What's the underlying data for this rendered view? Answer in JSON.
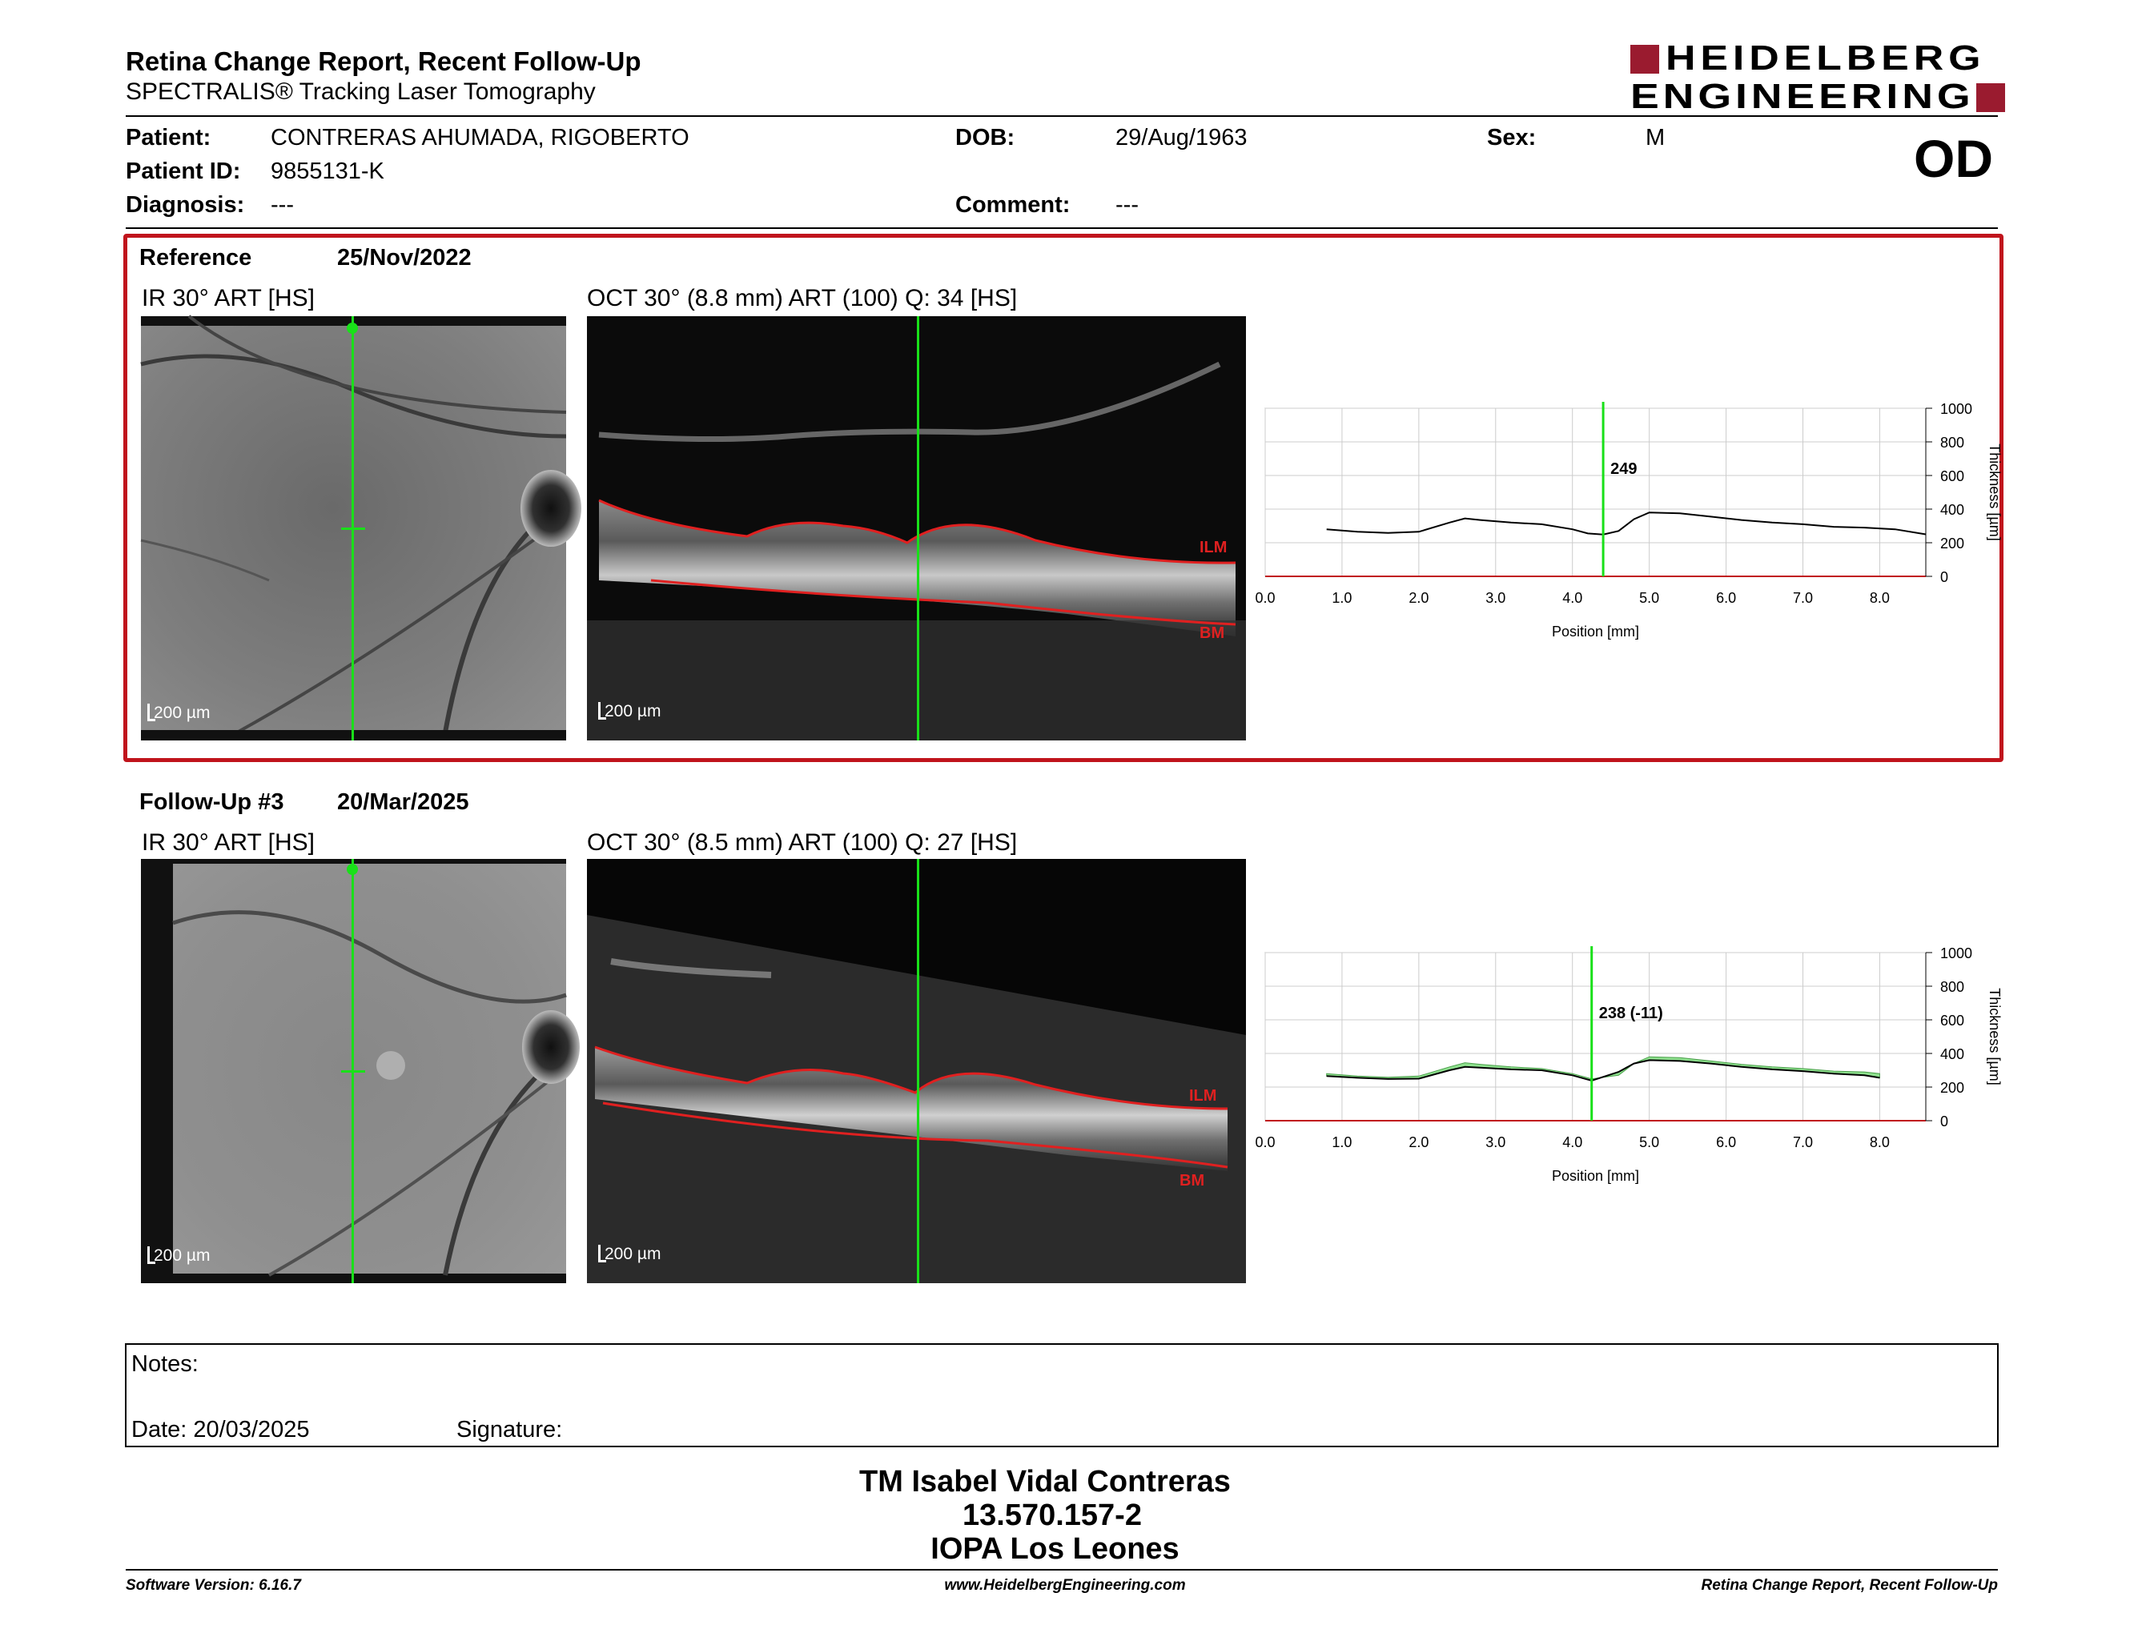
{
  "header": {
    "title": "Retina Change Report, Recent Follow-Up",
    "subtitle": "SPECTRALIS® Tracking Laser Tomography",
    "logo_line1": "HEIDELBERG",
    "logo_line2": "ENGINEERING"
  },
  "patient": {
    "patient_label": "Patient:",
    "patient_value": "CONTRERAS AHUMADA, RIGOBERTO",
    "id_label": "Patient ID:",
    "id_value": "9855131-K",
    "diagnosis_label": "Diagnosis:",
    "diagnosis_value": "---",
    "dob_label": "DOB:",
    "dob_value": "29/Aug/1963",
    "comment_label": "Comment:",
    "comment_value": "---",
    "sex_label": "Sex:",
    "sex_value": "M",
    "eye": "OD"
  },
  "reference": {
    "label": "Reference",
    "date": "25/Nov/2022",
    "ir_title": "IR 30° ART [HS]",
    "oct_title": "OCT 30° (8.8 mm) ART (100) Q: 34 [HS]",
    "ir_scale": "200 µm",
    "oct_scale": "200 µm",
    "ilm": "ILM",
    "bm": "BM",
    "value_label": "249"
  },
  "followup": {
    "label": "Follow-Up #3",
    "date": "20/Mar/2025",
    "ir_title": "IR 30° ART [HS]",
    "oct_title": "OCT 30° (8.5 mm) ART (100) Q: 27 [HS]",
    "ir_scale": "200 µm",
    "oct_scale": "200 µm",
    "ilm": "ILM",
    "bm": "BM",
    "value_label": "238 (-11)"
  },
  "chart_data": [
    {
      "type": "line",
      "xlabel": "Position [mm]",
      "ylabel": "Thickness [µm]",
      "xlim": [
        0,
        8.6
      ],
      "ylim": [
        0,
        1000
      ],
      "xticks": [
        "0.0",
        "1.0",
        "2.0",
        "3.0",
        "4.0",
        "5.0",
        "6.0",
        "7.0",
        "8.0"
      ],
      "yticks": [
        "0",
        "200",
        "400",
        "600",
        "800",
        "1000"
      ],
      "cursor_x": 4.4,
      "x": [
        0.8,
        1.2,
        1.6,
        2.0,
        2.4,
        2.6,
        2.8,
        3.2,
        3.6,
        4.0,
        4.2,
        4.4,
        4.6,
        4.8,
        5.0,
        5.4,
        5.8,
        6.2,
        6.6,
        7.0,
        7.4,
        7.8,
        8.2,
        8.6
      ],
      "y": [
        280,
        265,
        258,
        265,
        320,
        345,
        335,
        320,
        310,
        280,
        255,
        249,
        270,
        340,
        380,
        375,
        355,
        335,
        320,
        310,
        295,
        290,
        280,
        250
      ]
    },
    {
      "type": "line",
      "xlabel": "Position [mm]",
      "ylabel": "Thickness [µm]",
      "xlim": [
        0,
        8.6
      ],
      "ylim": [
        0,
        1000
      ],
      "xticks": [
        "0.0",
        "1.0",
        "2.0",
        "3.0",
        "4.0",
        "5.0",
        "6.0",
        "7.0",
        "8.0"
      ],
      "yticks": [
        "0",
        "200",
        "400",
        "600",
        "800",
        "1000"
      ],
      "cursor_x": 4.25,
      "x": [
        0.8,
        1.2,
        1.6,
        2.0,
        2.4,
        2.6,
        2.8,
        3.2,
        3.6,
        4.0,
        4.25,
        4.6,
        4.8,
        5.0,
        5.4,
        5.8,
        6.2,
        6.6,
        7.0,
        7.4,
        7.8,
        8.0
      ],
      "y": [
        265,
        255,
        248,
        250,
        300,
        320,
        315,
        305,
        300,
        270,
        238,
        290,
        340,
        360,
        355,
        340,
        320,
        305,
        295,
        280,
        270,
        255
      ],
      "reference_y": [
        280,
        265,
        258,
        265,
        320,
        345,
        335,
        320,
        310,
        280,
        249,
        270,
        340,
        380,
        375,
        355,
        335,
        320,
        310,
        295,
        290,
        280
      ]
    }
  ],
  "notes": {
    "notes_label": "Notes:",
    "date_label": "Date: 20/03/2025",
    "signature_label": "Signature:"
  },
  "signoff": {
    "name": "TM Isabel Vidal Contreras",
    "id": "13.570.157-2",
    "place": "IOPA Los Leones"
  },
  "footer": {
    "software": "Software Version: 6.16.7",
    "website": "www.HeidelbergEngineering.com",
    "report": "Retina Change Report, Recent Follow-Up"
  },
  "colors": {
    "brand_red": "#9a1b2f",
    "frame_red": "#c0141c",
    "cursor_green": "#19e019",
    "delta_green": "#8ee08e"
  }
}
